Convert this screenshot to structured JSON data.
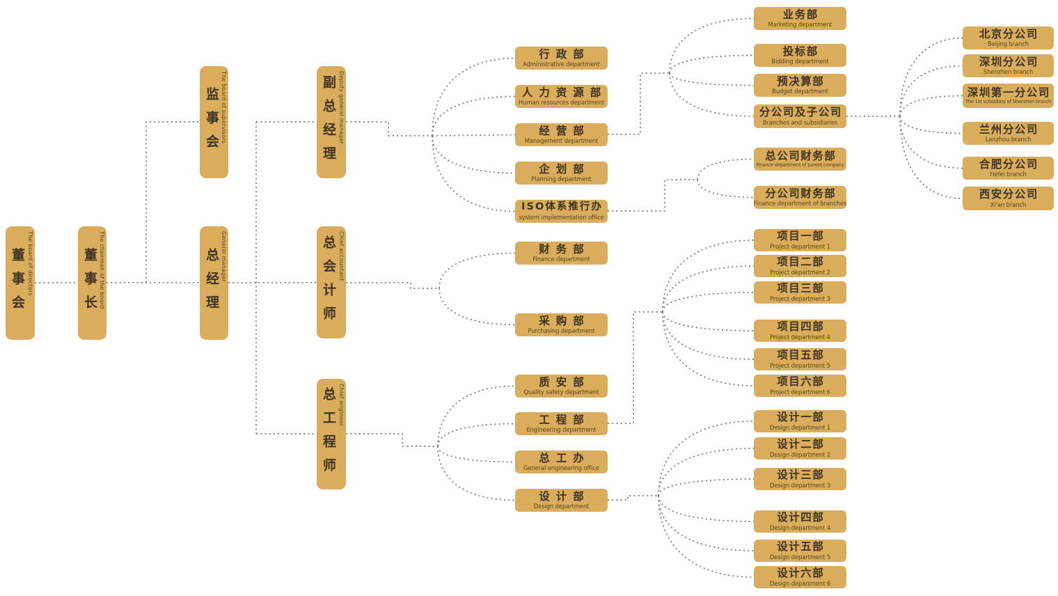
{
  "diagram": {
    "type": "organization-chart",
    "colors": {
      "box_fill": "#d9ad5c",
      "cn_text": "#3e3322",
      "en_text": "#57461f",
      "connector_line": "#7d7d7d",
      "background": "#ffffff"
    },
    "nodes": [
      {
        "id": "board",
        "cn": "董事会",
        "en": "The board of directors"
      },
      {
        "id": "chairman",
        "cn": "董事长",
        "en": "The chairman of the board"
      },
      {
        "id": "supervisors",
        "cn": "监事会",
        "en": "The board of supervisors"
      },
      {
        "id": "gm",
        "cn": "总经理",
        "en": "General manager"
      },
      {
        "id": "deputy-gm",
        "cn": "副总经理",
        "en": "Deputy general manager"
      },
      {
        "id": "chief-accountant",
        "cn": "总会计师",
        "en": "Chief accountant"
      },
      {
        "id": "chief-engineer",
        "cn": "总工程师",
        "en": "Chief engineer"
      },
      {
        "id": "admin",
        "cn": "行政部",
        "en": "Administrative department"
      },
      {
        "id": "hr",
        "cn": "人力资源部",
        "en": "Human resources department"
      },
      {
        "id": "management",
        "cn": "经营部",
        "en": "Management department"
      },
      {
        "id": "planning",
        "cn": "企划部",
        "en": "Planning department"
      },
      {
        "id": "iso",
        "cn": "ISO体系推行办",
        "en": "system implementation office"
      },
      {
        "id": "finance",
        "cn": "财务部",
        "en": "Finance department"
      },
      {
        "id": "purchasing",
        "cn": "采购部",
        "en": "Purchasing department"
      },
      {
        "id": "quality",
        "cn": "质安部",
        "en": "Quality safety department"
      },
      {
        "id": "engineering",
        "cn": "工程部",
        "en": "Engineering department"
      },
      {
        "id": "geo",
        "cn": "总工办",
        "en": "General engineering office"
      },
      {
        "id": "design",
        "cn": "设计部",
        "en": "Design department"
      },
      {
        "id": "marketing",
        "cn": "业务部",
        "en": "Marketing department"
      },
      {
        "id": "bidding",
        "cn": "投标部",
        "en": "Bidding department"
      },
      {
        "id": "budget",
        "cn": "预决算部",
        "en": "Budget department"
      },
      {
        "id": "branches",
        "cn": "分公司及子公司",
        "en": "Branches and subsidiaries"
      },
      {
        "id": "parent-finance",
        "cn": "总公司财务部",
        "en": "Finance department of parent company"
      },
      {
        "id": "branch-finance",
        "cn": "分公司财务部",
        "en": "Finance department of branches"
      },
      {
        "id": "project-1",
        "cn": "项目一部",
        "en": "Project department 1"
      },
      {
        "id": "project-2",
        "cn": "项目二部",
        "en": "Project department 2"
      },
      {
        "id": "project-3",
        "cn": "项目三部",
        "en": "Project department 3"
      },
      {
        "id": "project-4",
        "cn": "项目四部",
        "en": "Project department 4"
      },
      {
        "id": "project-5",
        "cn": "项目五部",
        "en": "Project department 5"
      },
      {
        "id": "project-6",
        "cn": "项目六部",
        "en": "Project department 6"
      },
      {
        "id": "design-1",
        "cn": "设计一部",
        "en": "Design department 1"
      },
      {
        "id": "design-2",
        "cn": "设计二部",
        "en": "Design department 2"
      },
      {
        "id": "design-3",
        "cn": "设计三部",
        "en": "Design department 3"
      },
      {
        "id": "design-4",
        "cn": "设计四部",
        "en": "Design department 4"
      },
      {
        "id": "design-5",
        "cn": "设计五部",
        "en": "Design department 5"
      },
      {
        "id": "design-6",
        "cn": "设计六部",
        "en": "Design department 6"
      },
      {
        "id": "beijing",
        "cn": "北京分公司",
        "en": "Beijing branch"
      },
      {
        "id": "shenzhen",
        "cn": "深圳分公司",
        "en": "Shenzhen branch"
      },
      {
        "id": "shenzhen-1st",
        "cn": "深圳第一分公司",
        "en": "The 1st subsidiary of Shenzhen branch"
      },
      {
        "id": "lanzhou",
        "cn": "兰州分公司",
        "en": "Lanzhou branch"
      },
      {
        "id": "hefei",
        "cn": "合肥分公司",
        "en": "Hefei branch"
      },
      {
        "id": "xian",
        "cn": "西安分公司",
        "en": "Xi'an branch"
      }
    ],
    "edges": [
      {
        "from": "board",
        "to": "chairman"
      },
      {
        "from": "chairman",
        "to": "supervisors"
      },
      {
        "from": "chairman",
        "to": "gm"
      },
      {
        "from": "gm",
        "to": "deputy-gm"
      },
      {
        "from": "gm",
        "to": "chief-accountant"
      },
      {
        "from": "gm",
        "to": "chief-engineer"
      },
      {
        "from": "deputy-gm",
        "to": "admin"
      },
      {
        "from": "deputy-gm",
        "to": "hr"
      },
      {
        "from": "deputy-gm",
        "to": "management"
      },
      {
        "from": "deputy-gm",
        "to": "planning"
      },
      {
        "from": "deputy-gm",
        "to": "iso"
      },
      {
        "from": "chief-accountant",
        "to": "finance"
      },
      {
        "from": "chief-accountant",
        "to": "purchasing"
      },
      {
        "from": "chief-engineer",
        "to": "quality"
      },
      {
        "from": "chief-engineer",
        "to": "engineering"
      },
      {
        "from": "chief-engineer",
        "to": "geo"
      },
      {
        "from": "chief-engineer",
        "to": "design"
      },
      {
        "from": "management",
        "to": "marketing"
      },
      {
        "from": "management",
        "to": "bidding"
      },
      {
        "from": "management",
        "to": "budget"
      },
      {
        "from": "management",
        "to": "branches"
      },
      {
        "from": "iso",
        "to": "parent-finance"
      },
      {
        "from": "iso",
        "to": "branch-finance"
      },
      {
        "from": "engineering",
        "to": "project-1"
      },
      {
        "from": "engineering",
        "to": "project-2"
      },
      {
        "from": "engineering",
        "to": "project-3"
      },
      {
        "from": "engineering",
        "to": "project-4"
      },
      {
        "from": "engineering",
        "to": "project-5"
      },
      {
        "from": "engineering",
        "to": "project-6"
      },
      {
        "from": "design",
        "to": "design-1"
      },
      {
        "from": "design",
        "to": "design-2"
      },
      {
        "from": "design",
        "to": "design-3"
      },
      {
        "from": "design",
        "to": "design-4"
      },
      {
        "from": "design",
        "to": "design-5"
      },
      {
        "from": "design",
        "to": "design-6"
      },
      {
        "from": "branches",
        "to": "beijing"
      },
      {
        "from": "branches",
        "to": "shenzhen"
      },
      {
        "from": "branches",
        "to": "shenzhen-1st"
      },
      {
        "from": "branches",
        "to": "lanzhou"
      },
      {
        "from": "branches",
        "to": "hefei"
      },
      {
        "from": "branches",
        "to": "xian"
      }
    ]
  }
}
